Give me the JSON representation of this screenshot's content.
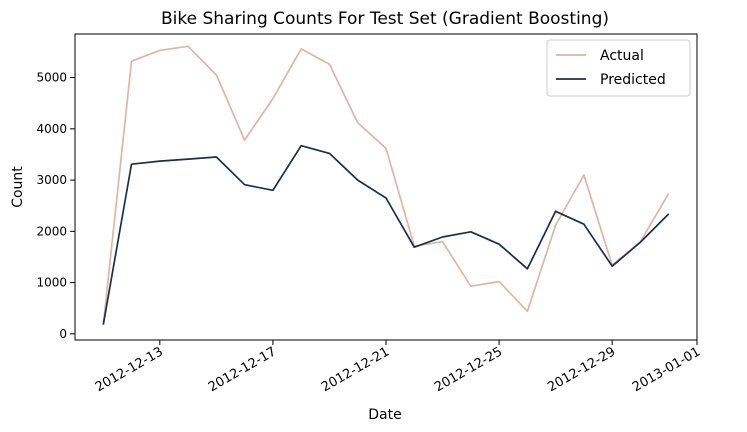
{
  "chart_data": {
    "type": "line",
    "title": "Bike Sharing Counts For Test Set (Gradient Boosting)",
    "xlabel": "Date",
    "ylabel": "Count",
    "x_axis": {
      "type": "date",
      "range": [
        "2012-12-10",
        "2013-01-01"
      ],
      "ticks": [
        "2012-12-13",
        "2012-12-17",
        "2012-12-21",
        "2012-12-25",
        "2012-12-29",
        "2013-01-01"
      ]
    },
    "y_axis": {
      "range": [
        -120,
        5850
      ],
      "ticks": [
        0,
        1000,
        2000,
        3000,
        4000,
        5000
      ]
    },
    "grid": false,
    "legend": {
      "placement": "top-right"
    },
    "x": [
      "2012-12-11",
      "2012-12-12",
      "2012-12-13",
      "2012-12-14",
      "2012-12-15",
      "2012-12-16",
      "2012-12-17",
      "2012-12-18",
      "2012-12-19",
      "2012-12-20",
      "2012-12-21",
      "2012-12-22",
      "2012-12-23",
      "2012-12-24",
      "2012-12-25",
      "2012-12-26",
      "2012-12-27",
      "2012-12-28",
      "2012-12-29",
      "2012-12-30",
      "2012-12-31"
    ],
    "series": [
      {
        "name": "Actual",
        "color": "#dcb6a6",
        "values": [
          180,
          5320,
          5530,
          5610,
          5050,
          3780,
          4590,
          5560,
          5260,
          4120,
          3620,
          1710,
          1800,
          930,
          1020,
          440,
          2120,
          3100,
          1340,
          1800,
          2740
        ]
      },
      {
        "name": "Predicted",
        "color": "#1c2f4a",
        "values": [
          180,
          3310,
          3370,
          3410,
          3450,
          2910,
          2800,
          3670,
          3520,
          3000,
          2650,
          1690,
          1890,
          1990,
          1750,
          1270,
          2390,
          2140,
          1320,
          1790,
          2340
        ]
      }
    ]
  }
}
